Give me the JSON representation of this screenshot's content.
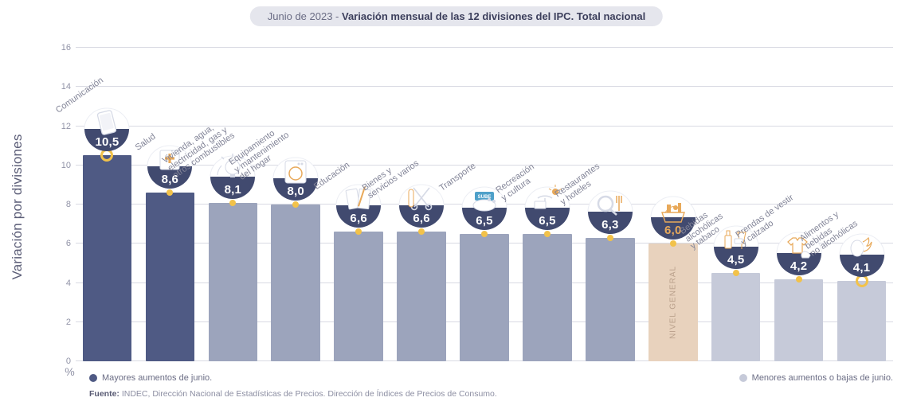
{
  "header": {
    "prefix": "Junio de 2023 - ",
    "title": "Variación mensual de las 12 divisiones del IPC. Total nacional"
  },
  "axis": {
    "ylabel": "Variación por divisiones",
    "ylim": [
      0,
      16
    ],
    "ytick_step": 2,
    "unit": "%"
  },
  "colors": {
    "bar_high": "#4f5a84",
    "bar_mid": "#9ca4bc",
    "bar_low": "#c6cad9",
    "bar_general": "#e8d2bd",
    "badge_fill": "#414a6f",
    "badge_text": "#ffffff",
    "badge_general_text": "#e8a95a",
    "marker": "#f2c24a",
    "grid": "#d9dae3",
    "tick_text": "#9193a7",
    "caption_text": "#838598",
    "banner_bg": "#e5e6ed"
  },
  "bars": [
    {
      "label": "Comunicación",
      "value": 10.5,
      "display": "10,5",
      "color": "bar_high",
      "marker": "ring",
      "icon": "phone"
    },
    {
      "label": "Salud",
      "value": 8.6,
      "display": "8,6",
      "color": "bar_high",
      "marker": "dot",
      "icon": "health"
    },
    {
      "label": "Vivienda, agua,\nelectricidad, gas y\notros combustibles",
      "value": 8.1,
      "display": "8,1",
      "color": "bar_mid",
      "marker": "dot",
      "icon": "bulb"
    },
    {
      "label": "Equipamiento\ny mantenimiento\ndel hogar",
      "value": 8.0,
      "display": "8,0",
      "color": "bar_mid",
      "marker": "dot",
      "icon": "washer"
    },
    {
      "label": "Educación",
      "value": 6.6,
      "display": "6,6",
      "color": "bar_mid",
      "marker": "dot",
      "icon": "book"
    },
    {
      "label": "Bienes y\nservicios varios",
      "value": 6.6,
      "display": "6,6",
      "color": "bar_mid",
      "marker": "dot",
      "icon": "scissors"
    },
    {
      "label": "Transporte",
      "value": 6.5,
      "display": "6,5",
      "color": "bar_mid",
      "marker": "dot",
      "icon": "transport"
    },
    {
      "label": "Recreación\ny cultura",
      "value": 6.5,
      "display": "6,5",
      "color": "bar_mid",
      "marker": "dot",
      "icon": "recreation"
    },
    {
      "label": "Restaurantes\ny hoteles",
      "value": 6.3,
      "display": "6,3",
      "color": "bar_mid",
      "marker": "dot",
      "icon": "restaurant"
    },
    {
      "label": "NIVEL GENERAL",
      "value": 6.0,
      "display": "6,0",
      "color": "bar_general",
      "marker": "dot",
      "icon": "basket",
      "general": true
    },
    {
      "label": "Bebidas\nalcohólicas\ny tabaco",
      "value": 4.5,
      "display": "4,5",
      "color": "bar_low",
      "marker": "dot",
      "icon": "drinks"
    },
    {
      "label": "Prendas de vestir\ny calzado",
      "value": 4.2,
      "display": "4,2",
      "color": "bar_low",
      "marker": "dot",
      "icon": "clothes"
    },
    {
      "label": "Alimentos y\nbebidas\nno alcohólicas",
      "value": 4.1,
      "display": "4,1",
      "color": "bar_low",
      "marker": "ring",
      "icon": "food"
    }
  ],
  "legend": {
    "high": "Mayores aumentos de junio.",
    "low": "Menores aumentos o bajas de junio."
  },
  "source": {
    "label": "Fuente:",
    "text": "INDEC, Dirección Nacional de Estadísticas de Precios. Dirección de Índices de Precios de Consumo."
  },
  "layout": {
    "bar_width_ratio": 0.78,
    "badge_diameter": 58,
    "value_fontsize": 15,
    "caption_fontsize": 11,
    "label_rotation_deg": -35
  }
}
